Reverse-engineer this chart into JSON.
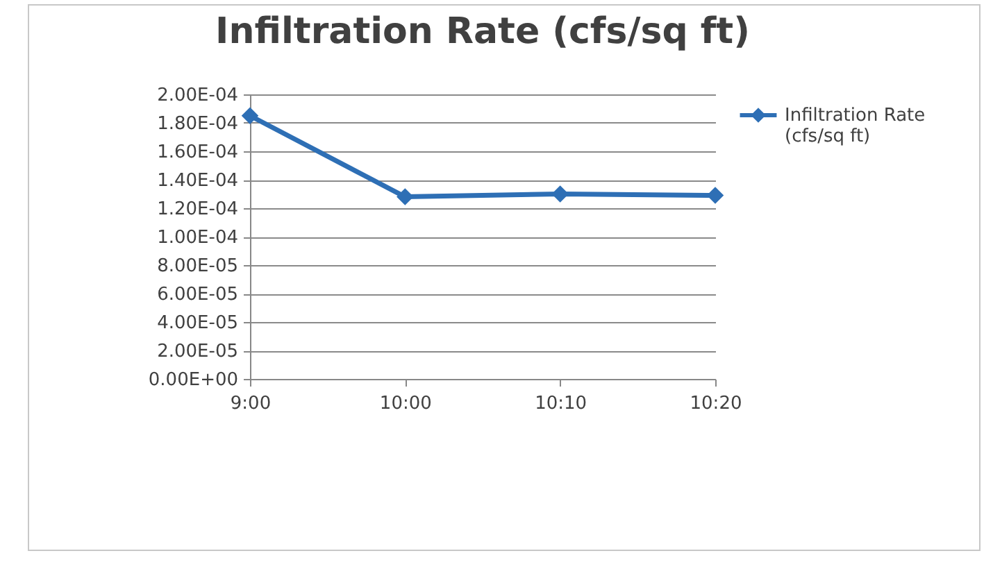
{
  "chart_data": {
    "type": "line",
    "title": "Infiltration Rate (cfs/sq ft)",
    "categories": [
      "9:00",
      "10:00",
      "10:10",
      "10:20"
    ],
    "series": [
      {
        "name": "Infiltration Rate (cfs/sq ft)",
        "color": "#2e6fb5",
        "values": [
          0.000185,
          0.000128,
          0.00013,
          0.000129
        ]
      }
    ],
    "ylim": [
      0,
      0.0002
    ],
    "yticks": [
      {
        "value": 0,
        "label": "0.00E+00"
      },
      {
        "value": 2e-05,
        "label": "2.00E-05"
      },
      {
        "value": 4e-05,
        "label": "4.00E-05"
      },
      {
        "value": 6e-05,
        "label": "6.00E-05"
      },
      {
        "value": 8e-05,
        "label": "8.00E-05"
      },
      {
        "value": 0.0001,
        "label": "1.00E-04"
      },
      {
        "value": 0.00012,
        "label": "1.20E-04"
      },
      {
        "value": 0.00014,
        "label": "1.40E-04"
      },
      {
        "value": 0.00016,
        "label": "1.60E-04"
      },
      {
        "value": 0.00018,
        "label": "1.80E-04"
      },
      {
        "value": 0.0002,
        "label": "2.00E-04"
      }
    ],
    "grid": "y",
    "legend": "right",
    "marker": "diamond",
    "line_style": "solid"
  }
}
